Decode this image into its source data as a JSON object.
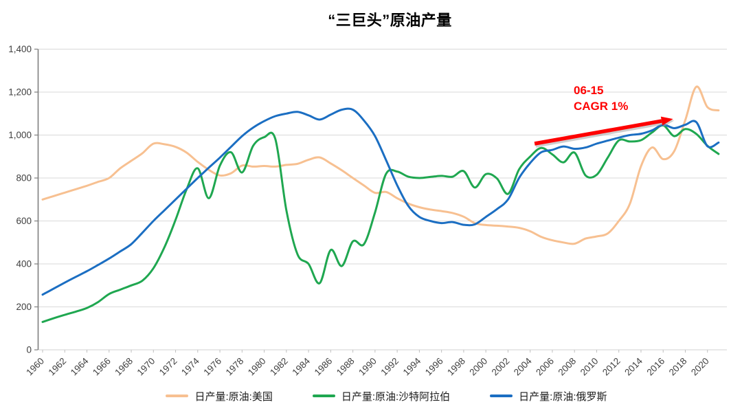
{
  "title": "“三巨头”原油产量",
  "annotation": {
    "line1": "06-15",
    "line2": "CAGR 1%",
    "color": "#fe0000"
  },
  "colors": {
    "grid": "#d9d9d9",
    "x_axis": "#d9d9d9",
    "y_axis": "#7f7f7f",
    "x_tick": "#bfbfbf",
    "tick_label": "#3f3f3f",
    "arrow": "#fe0000",
    "arrow_shadow": "#9e9e9e"
  },
  "chart_data": {
    "type": "line",
    "title": "“三巨头”原油产量",
    "xlabel": "",
    "ylabel": "",
    "x_start": 1960,
    "x_end": 2021,
    "x": [
      1960,
      1961,
      1962,
      1963,
      1964,
      1965,
      1966,
      1967,
      1968,
      1969,
      1970,
      1971,
      1972,
      1973,
      1974,
      1975,
      1976,
      1977,
      1978,
      1979,
      1980,
      1981,
      1982,
      1983,
      1984,
      1985,
      1986,
      1987,
      1988,
      1989,
      1990,
      1991,
      1992,
      1993,
      1994,
      1995,
      1996,
      1997,
      1998,
      1999,
      2000,
      2001,
      2002,
      2003,
      2004,
      2005,
      2006,
      2007,
      2008,
      2009,
      2010,
      2011,
      2012,
      2013,
      2014,
      2015,
      2016,
      2017,
      2018,
      2019,
      2020,
      2021
    ],
    "x_tick_labels": [
      "1960",
      "1962",
      "1964",
      "1966",
      "1968",
      "1970",
      "1972",
      "1974",
      "1976",
      "1978",
      "1980",
      "1982",
      "1984",
      "1986",
      "1988",
      "1990",
      "1992",
      "1994",
      "1996",
      "1998",
      "2000",
      "2002",
      "2004",
      "2006",
      "2008",
      "2010",
      "2012",
      "2014",
      "2016",
      "2018",
      "2020"
    ],
    "ylim": [
      0,
      1400
    ],
    "y_tick_step": 200,
    "y_tick_labels": [
      "0",
      "200",
      "400",
      "600",
      "800",
      "1,000",
      "1,200",
      "1,400"
    ],
    "grid": true,
    "legend_position": "bottom",
    "series": [
      {
        "name": "日产量:原油:美国",
        "color": "#f7c091",
        "values": [
          700,
          716,
          732,
          748,
          764,
          782,
          800,
          845,
          880,
          915,
          960,
          957,
          945,
          918,
          875,
          838,
          812,
          822,
          858,
          853,
          856,
          853,
          861,
          866,
          885,
          896,
          868,
          836,
          800,
          765,
          731,
          735,
          706,
          681,
          664,
          653,
          646,
          637,
          620,
          590,
          581,
          578,
          574,
          568,
          552,
          526,
          510,
          500,
          494,
          518,
          528,
          542,
          600,
          680,
          855,
          942,
          888,
          925,
          1070,
          1225,
          1130,
          1115
        ]
      },
      {
        "name": "日产量:原油:沙特阿拉伯",
        "color": "#1fa750",
        "values": [
          130,
          147,
          163,
          178,
          195,
          222,
          260,
          280,
          300,
          322,
          380,
          478,
          605,
          748,
          845,
          706,
          858,
          920,
          826,
          950,
          990,
          982,
          650,
          445,
          400,
          310,
          465,
          390,
          505,
          492,
          640,
          820,
          830,
          806,
          800,
          805,
          810,
          806,
          832,
          756,
          818,
          798,
          726,
          840,
          900,
          940,
          910,
          873,
          918,
          812,
          815,
          895,
          975,
          970,
          976,
          1012,
          1045,
          995,
          1028,
          1005,
          950,
          912
        ]
      },
      {
        "name": "日产量:原油:俄罗斯",
        "color": "#1b6ec2",
        "values": [
          257,
          285,
          313,
          340,
          366,
          395,
          425,
          458,
          492,
          545,
          600,
          650,
          700,
          750,
          800,
          848,
          895,
          945,
          995,
          1035,
          1065,
          1088,
          1100,
          1108,
          1092,
          1072,
          1095,
          1118,
          1118,
          1068,
          995,
          883,
          766,
          670,
          619,
          600,
          590,
          595,
          582,
          584,
          619,
          655,
          700,
          800,
          870,
          920,
          931,
          947,
          936,
          942,
          960,
          974,
          988,
          1000,
          1006,
          1022,
          1048,
          1032,
          1048,
          1060,
          948,
          965
        ]
      }
    ],
    "annotations": [
      {
        "text_lines": [
          "06-15",
          "CAGR 1%"
        ],
        "arrow": {
          "from": {
            "year": 2004.4,
            "value": 960
          },
          "to": {
            "year": 2016.9,
            "value": 1075
          }
        }
      }
    ]
  }
}
